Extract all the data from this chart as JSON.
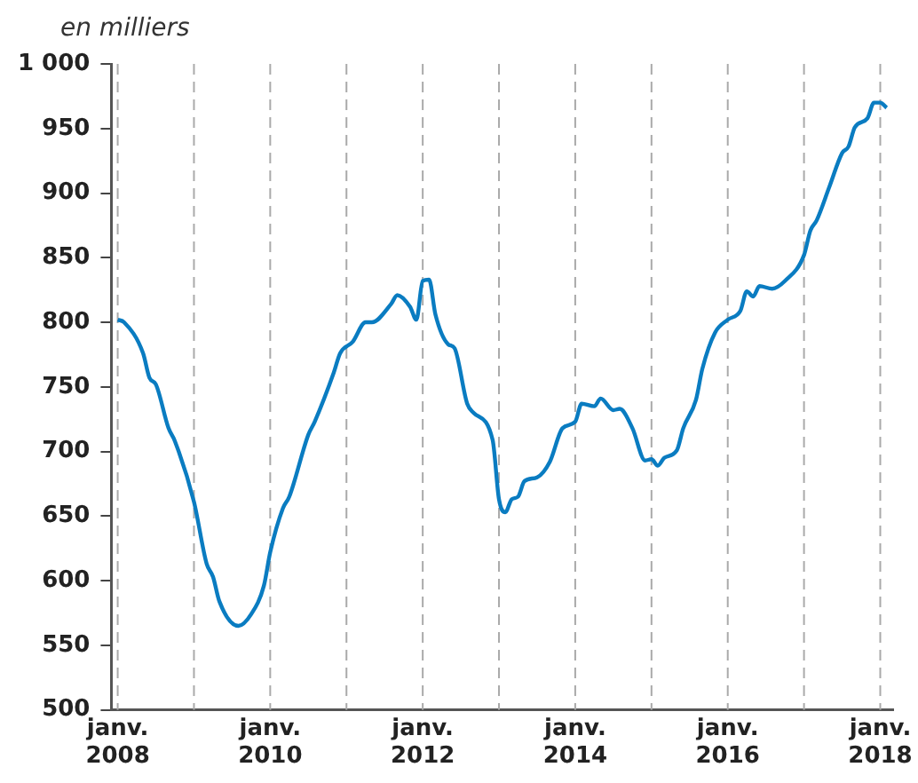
{
  "chart_data": {
    "type": "line",
    "ylabel": "en milliers",
    "x": [
      "2008-01",
      "2008-02",
      "2008-05",
      "2008-06",
      "2008-07",
      "2008-09",
      "2008-10",
      "2009-01",
      "2009-03",
      "2009-04",
      "2009-05",
      "2009-08",
      "2009-10",
      "2009-12",
      "2010-01",
      "2010-03",
      "2010-04",
      "2010-07",
      "2010-08",
      "2010-11",
      "2010-12",
      "2011-02",
      "2011-04",
      "2011-05",
      "2011-08",
      "2011-09",
      "2011-11",
      "2011-12",
      "2012-01",
      "2012-02",
      "2012-03",
      "2012-05",
      "2012-06",
      "2012-08",
      "2012-09",
      "2012-12",
      "2013-01",
      "2013-02",
      "2013-03",
      "2013-04",
      "2013-05",
      "2013-07",
      "2013-09",
      "2013-11",
      "2014-01",
      "2014-02",
      "2014-04",
      "2014-05",
      "2014-07",
      "2014-08",
      "2014-10",
      "2014-12",
      "2015-01",
      "2015-02",
      "2015-03",
      "2015-05",
      "2015-06",
      "2015-08",
      "2015-09",
      "2015-11",
      "2016-01",
      "2016-03",
      "2016-04",
      "2016-05",
      "2016-06",
      "2016-08",
      "2016-10",
      "2017-01",
      "2017-02",
      "2017-03",
      "2017-05",
      "2017-07",
      "2017-08",
      "2017-09",
      "2017-11",
      "2017-12",
      "2018-01",
      "2018-02"
    ],
    "series": [
      {
        "color": "#0a7cc1",
        "values": [
          802,
          800,
          776,
          757,
          752,
          718,
          708,
          661,
          613,
          603,
          584,
          565,
          574,
          596,
          622,
          656,
          665,
          713,
          723,
          761,
          776,
          785,
          800,
          800,
          814,
          821,
          812,
          802,
          832,
          833,
          806,
          783,
          780,
          737,
          730,
          709,
          663,
          653,
          663,
          665,
          677,
          680,
          692,
          718,
          723,
          737,
          735,
          741,
          732,
          733,
          718,
          693,
          694,
          689,
          695,
          701,
          718,
          740,
          764,
          792,
          802,
          809,
          824,
          820,
          828,
          826,
          832,
          852,
          871,
          879,
          905,
          931,
          936,
          951,
          958,
          970,
          970,
          966
        ]
      }
    ],
    "xlim": [
      "2007-12",
      "2018-03"
    ],
    "xticks": [
      {
        "value": "2008-01",
        "label": "janv.\n2008"
      },
      {
        "value": "2009-01",
        "label": null
      },
      {
        "value": "2010-01",
        "label": "janv.\n2010"
      },
      {
        "value": "2011-01",
        "label": null
      },
      {
        "value": "2012-01",
        "label": "janv.\n2012"
      },
      {
        "value": "2013-01",
        "label": null
      },
      {
        "value": "2014-01",
        "label": "janv.\n2014"
      },
      {
        "value": "2015-01",
        "label": null
      },
      {
        "value": "2016-01",
        "label": "janv.\n2016"
      },
      {
        "value": "2017-01",
        "label": null
      },
      {
        "value": "2018-01",
        "label": "janv.\n2018"
      }
    ],
    "ylim": [
      500,
      1000
    ],
    "yticks": [
      500,
      550,
      600,
      650,
      700,
      750,
      800,
      850,
      900,
      950,
      {
        "value": 1000,
        "label": "1 000"
      }
    ],
    "grid": "x",
    "legend": false,
    "marker": "none",
    "line_style": "solid"
  }
}
